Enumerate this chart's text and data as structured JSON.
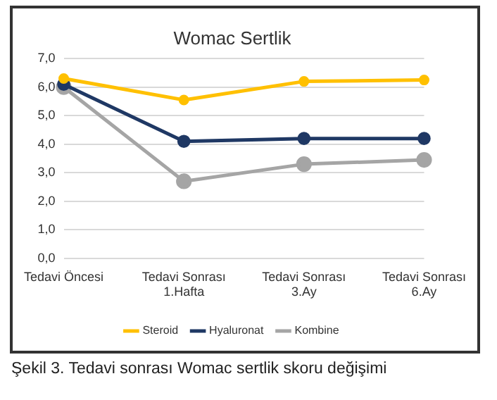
{
  "chart_data": {
    "type": "line",
    "title": "Womac Sertlik",
    "categories": [
      "Tedavi Öncesi",
      "Tedavi Sonrası\n1.Hafta",
      "Tedavi Sonrası\n3.Ay",
      "Tedavi Sonrası\n6.Ay"
    ],
    "series": [
      {
        "name": "Steroid",
        "color": "#ffc000",
        "values": [
          6.3,
          5.55,
          6.2,
          6.25
        ]
      },
      {
        "name": "Hyaluronat",
        "color": "#1f3864",
        "values": [
          6.1,
          4.1,
          4.2,
          4.2
        ]
      },
      {
        "name": "Kombine",
        "color": "#a5a5a5",
        "values": [
          6.0,
          2.7,
          3.3,
          3.45
        ]
      }
    ],
    "ylim": [
      0,
      7
    ],
    "yticks": [
      {
        "value": 0,
        "label": "0,0"
      },
      {
        "value": 1,
        "label": "1,0"
      },
      {
        "value": 2,
        "label": "2,0"
      },
      {
        "value": 3,
        "label": "3,0"
      },
      {
        "value": 4,
        "label": "4,0"
      },
      {
        "value": 5,
        "label": "5,0"
      },
      {
        "value": 6,
        "label": "6,0"
      },
      {
        "value": 7,
        "label": "7,0"
      }
    ],
    "grid": "y",
    "legend": "bottom",
    "marker": "circle",
    "line_style": "solid",
    "annotations": [
      "Şekil 3. Tedavi sonrası Womac sertlik skoru değişimi"
    ]
  }
}
